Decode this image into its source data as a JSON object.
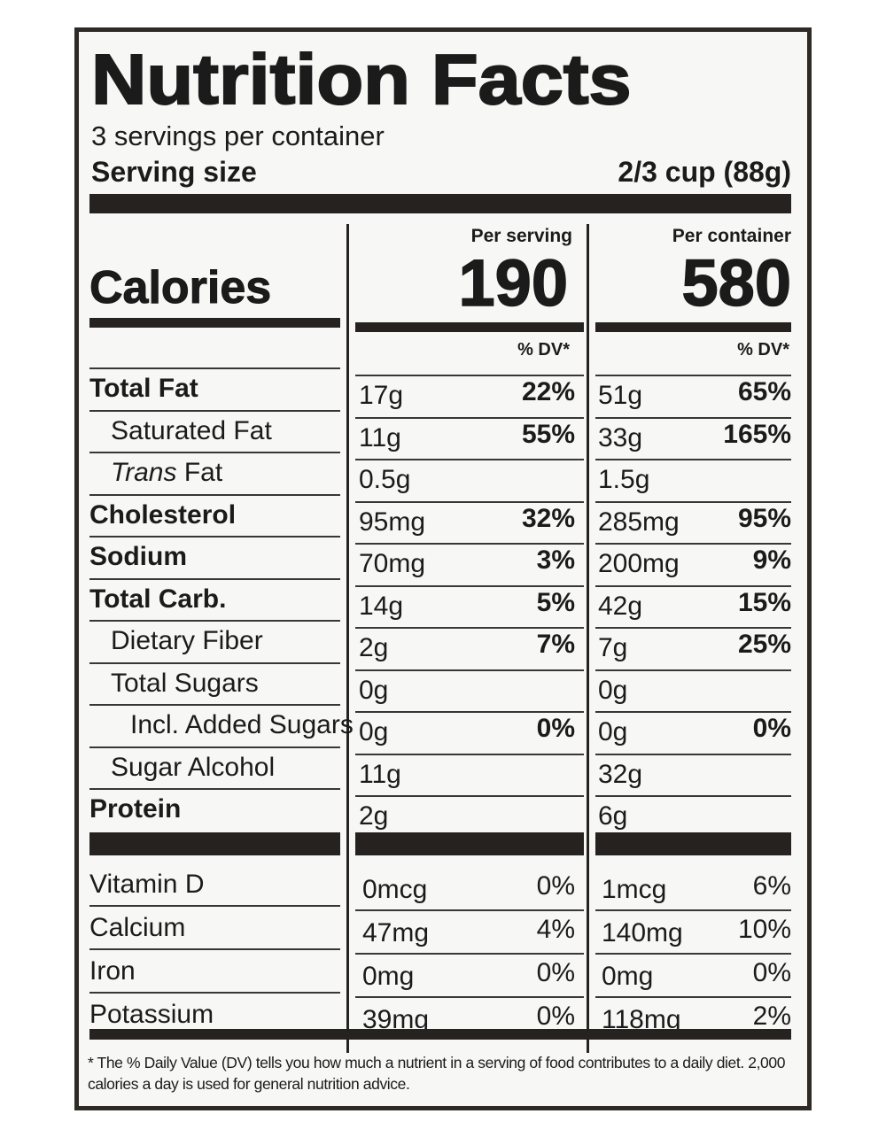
{
  "label": {
    "title": "Nutrition Facts",
    "servings_per_container": "3 servings per container",
    "serving_size_label": "Serving size",
    "serving_size_value": "2/3 cup (88g)",
    "columns": {
      "per_serving": "Per serving",
      "per_container": "Per container",
      "dv_header": "% DV*"
    },
    "calories": {
      "label": "Calories",
      "per_serving": "190",
      "per_container": "580"
    },
    "nutrients": [
      {
        "name": "Total Fat",
        "bold": true,
        "indent": 0,
        "serving_amount": "17g",
        "serving_dv": "22%",
        "container_amount": "51g",
        "container_dv": "65%"
      },
      {
        "name": "Saturated Fat",
        "bold": false,
        "indent": 1,
        "serving_amount": "11g",
        "serving_dv": "55%",
        "container_amount": "33g",
        "container_dv": "165%"
      },
      {
        "name_italic": "Trans",
        "name": "Fat",
        "bold": false,
        "indent": 1,
        "serving_amount": "0.5g",
        "serving_dv": "",
        "container_amount": "1.5g",
        "container_dv": ""
      },
      {
        "name": "Cholesterol",
        "bold": true,
        "indent": 0,
        "serving_amount": "95mg",
        "serving_dv": "32%",
        "container_amount": "285mg",
        "container_dv": "95%"
      },
      {
        "name": "Sodium",
        "bold": true,
        "indent": 0,
        "serving_amount": "70mg",
        "serving_dv": "3%",
        "container_amount": "200mg",
        "container_dv": "9%"
      },
      {
        "name": "Total Carb.",
        "bold": true,
        "indent": 0,
        "serving_amount": "14g",
        "serving_dv": "5%",
        "container_amount": "42g",
        "container_dv": "15%"
      },
      {
        "name": "Dietary Fiber",
        "bold": false,
        "indent": 1,
        "serving_amount": "2g",
        "serving_dv": "7%",
        "container_amount": "7g",
        "container_dv": "25%"
      },
      {
        "name": "Total Sugars",
        "bold": false,
        "indent": 1,
        "serving_amount": "0g",
        "serving_dv": "",
        "container_amount": "0g",
        "container_dv": ""
      },
      {
        "name": "Incl. Added Sugars",
        "bold": false,
        "indent": 2,
        "serving_amount": "0g",
        "serving_dv": "0%",
        "container_amount": "0g",
        "container_dv": "0%"
      },
      {
        "name": "Sugar Alcohol",
        "bold": false,
        "indent": 1,
        "serving_amount": "11g",
        "serving_dv": "",
        "container_amount": "32g",
        "container_dv": ""
      },
      {
        "name": "Protein",
        "bold": true,
        "indent": 0,
        "serving_amount": "2g",
        "serving_dv": "",
        "container_amount": "6g",
        "container_dv": ""
      }
    ],
    "vitamins": [
      {
        "name": "Vitamin D",
        "serving_amount": "0mcg",
        "serving_dv": "0%",
        "container_amount": "1mcg",
        "container_dv": "6%"
      },
      {
        "name": "Calcium",
        "serving_amount": "47mg",
        "serving_dv": "4%",
        "container_amount": "140mg",
        "container_dv": "10%"
      },
      {
        "name": "Iron",
        "serving_amount": "0mg",
        "serving_dv": "0%",
        "container_amount": "0mg",
        "container_dv": "0%"
      },
      {
        "name": "Potassium",
        "serving_amount": "39mg",
        "serving_dv": "0%",
        "container_amount": "118mg",
        "container_dv": "2%"
      }
    ],
    "footnote": "* The % Daily Value (DV) tells you how much a nutrient in a serving of food contributes to a daily diet. 2,000 calories a day is used for general nutrition advice."
  }
}
